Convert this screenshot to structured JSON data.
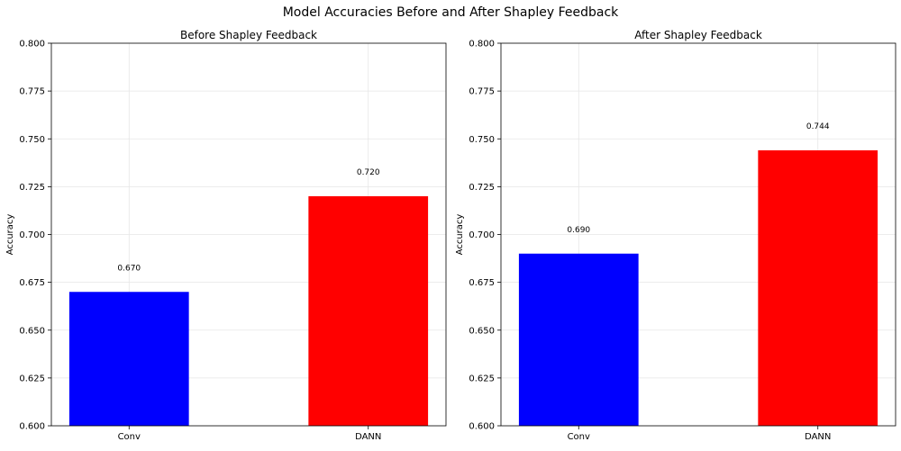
{
  "suptitle": "Model Accuracies Before and After Shapley Feedback",
  "chart_data": [
    {
      "type": "bar",
      "title": "Before Shapley Feedback",
      "xlabel": "",
      "ylabel": "Accuracy",
      "categories": [
        "Conv",
        "DANN"
      ],
      "values": [
        0.67,
        0.72
      ],
      "value_labels": [
        "0.670",
        "0.720"
      ],
      "colors": [
        "#0000ff",
        "#ff0000"
      ],
      "ylim": [
        0.6,
        0.8
      ],
      "yticks": [
        "0.600",
        "0.625",
        "0.650",
        "0.675",
        "0.700",
        "0.725",
        "0.750",
        "0.775",
        "0.800"
      ],
      "grid": true
    },
    {
      "type": "bar",
      "title": "After Shapley Feedback",
      "xlabel": "",
      "ylabel": "Accuracy",
      "categories": [
        "Conv",
        "DANN"
      ],
      "values": [
        0.69,
        0.744
      ],
      "value_labels": [
        "0.690",
        "0.744"
      ],
      "colors": [
        "#0000ff",
        "#ff0000"
      ],
      "ylim": [
        0.6,
        0.8
      ],
      "yticks": [
        "0.600",
        "0.625",
        "0.650",
        "0.675",
        "0.700",
        "0.725",
        "0.750",
        "0.775",
        "0.800"
      ],
      "grid": true
    }
  ]
}
